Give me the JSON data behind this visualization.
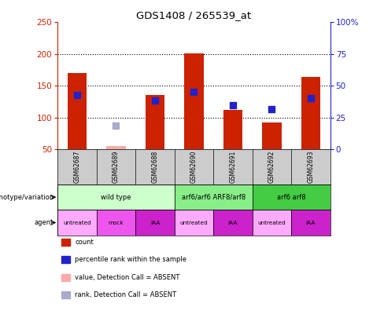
{
  "title": "GDS1408 / 265539_at",
  "samples": [
    "GSM62687",
    "GSM62689",
    "GSM62688",
    "GSM62690",
    "GSM62691",
    "GSM62692",
    "GSM62693"
  ],
  "count_values": [
    170,
    null,
    135,
    201,
    112,
    93,
    164
  ],
  "count_absent": [
    null,
    55,
    null,
    null,
    null,
    null,
    null
  ],
  "percentile_values": [
    136,
    null,
    127,
    141,
    119,
    114,
    131
  ],
  "percentile_absent": [
    null,
    88,
    null,
    null,
    null,
    null,
    null
  ],
  "ylim_left": [
    50,
    250
  ],
  "ylim_right": [
    0,
    100
  ],
  "yticks_left": [
    50,
    100,
    150,
    200,
    250
  ],
  "yticks_right": [
    0,
    25,
    50,
    75,
    100
  ],
  "yticklabels_right": [
    "0",
    "25",
    "50",
    "75",
    "100%"
  ],
  "bar_color": "#cc2200",
  "bar_absent_color": "#ffaaaa",
  "dot_color": "#2222cc",
  "dot_absent_color": "#aaaacc",
  "plot_bg": "#ffffff",
  "sample_bg": "#cccccc",
  "genotype_groups": [
    {
      "label": "wild type",
      "start": 0,
      "end": 2,
      "color": "#ccffcc"
    },
    {
      "label": "arf6/arf6 ARF8/arf8",
      "start": 3,
      "end": 4,
      "color": "#88ee88"
    },
    {
      "label": "arf6 arf8",
      "start": 5,
      "end": 6,
      "color": "#44cc44"
    }
  ],
  "agent_labels": [
    "untreated",
    "mock",
    "IAA",
    "untreated",
    "IAA",
    "untreated",
    "IAA"
  ],
  "agent_colors": [
    "#ffaaff",
    "#ee55ee",
    "#cc22cc",
    "#ffaaff",
    "#cc22cc",
    "#ffaaff",
    "#cc22cc"
  ],
  "legend_items": [
    {
      "label": "count",
      "color": "#cc2200"
    },
    {
      "label": "percentile rank within the sample",
      "color": "#2222cc"
    },
    {
      "label": "value, Detection Call = ABSENT",
      "color": "#ffaaaa"
    },
    {
      "label": "rank, Detection Call = ABSENT",
      "color": "#aaaacc"
    }
  ],
  "left_axis_color": "#cc2200",
  "right_axis_color": "#2222cc",
  "bar_width": 0.5,
  "dot_size": 40,
  "gridline_yticks": [
    100,
    150,
    200
  ]
}
